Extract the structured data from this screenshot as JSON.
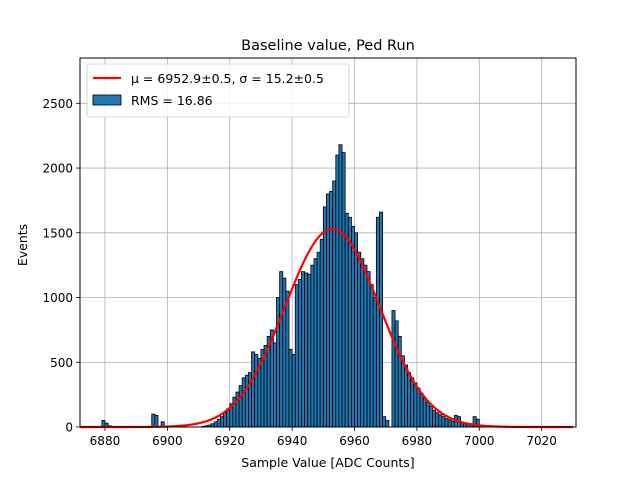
{
  "chart_data": {
    "type": "bar",
    "title": "Baseline value, Ped Run",
    "xlabel": "Sample Value [ADC Counts]",
    "ylabel": "Events",
    "xlim": [
      6872,
      7031
    ],
    "ylim": [
      0,
      2850
    ],
    "xticks": [
      6880,
      6900,
      6920,
      6940,
      6960,
      6980,
      7000,
      7020
    ],
    "yticks": [
      0,
      500,
      1000,
      1500,
      2000,
      2500
    ],
    "grid": true,
    "legend_position": "top-left",
    "legend": [
      {
        "type": "line",
        "label": "μ = 6952.9±0.5, σ = 15.2±0.5",
        "color": "#ff0000"
      },
      {
        "type": "patch",
        "label": "RMS = 16.86",
        "color": "#1f77b4"
      }
    ],
    "histogram": {
      "color": "#1f77b4",
      "edgecolor": "#000000",
      "bin_width": 1,
      "bins": [
        [
          6879,
          50
        ],
        [
          6880,
          30
        ],
        [
          6881,
          10
        ],
        [
          6882,
          5
        ],
        [
          6895,
          100
        ],
        [
          6896,
          90
        ],
        [
          6898,
          40
        ],
        [
          6911,
          5
        ],
        [
          6912,
          10
        ],
        [
          6913,
          15
        ],
        [
          6914,
          25
        ],
        [
          6915,
          40
        ],
        [
          6916,
          60
        ],
        [
          6917,
          80
        ],
        [
          6918,
          110
        ],
        [
          6919,
          140
        ],
        [
          6920,
          180
        ],
        [
          6921,
          230
        ],
        [
          6922,
          270
        ],
        [
          6923,
          320
        ],
        [
          6924,
          380
        ],
        [
          6925,
          400
        ],
        [
          6926,
          420
        ],
        [
          6927,
          580
        ],
        [
          6928,
          560
        ],
        [
          6929,
          530
        ],
        [
          6930,
          600
        ],
        [
          6931,
          630
        ],
        [
          6932,
          700
        ],
        [
          6933,
          750
        ],
        [
          6934,
          650
        ],
        [
          6935,
          1000
        ],
        [
          6936,
          1200
        ],
        [
          6937,
          1150
        ],
        [
          6938,
          1050
        ],
        [
          6939,
          600
        ],
        [
          6940,
          560
        ],
        [
          6941,
          1100
        ],
        [
          6942,
          1140
        ],
        [
          6943,
          1200
        ],
        [
          6944,
          1190
        ],
        [
          6945,
          1180
        ],
        [
          6946,
          1250
        ],
        [
          6947,
          1300
        ],
        [
          6948,
          1350
        ],
        [
          6949,
          1450
        ],
        [
          6950,
          1700
        ],
        [
          6951,
          1800
        ],
        [
          6952,
          1820
        ],
        [
          6953,
          1900
        ],
        [
          6954,
          2100
        ],
        [
          6955,
          2180
        ],
        [
          6956,
          2120
        ],
        [
          6957,
          1650
        ],
        [
          6958,
          1620
        ],
        [
          6959,
          1550
        ],
        [
          6960,
          1500
        ],
        [
          6961,
          1350
        ],
        [
          6962,
          1300
        ],
        [
          6963,
          1250
        ],
        [
          6964,
          1200
        ],
        [
          6965,
          1100
        ],
        [
          6966,
          1000
        ],
        [
          6967,
          1620
        ],
        [
          6968,
          1660
        ],
        [
          6969,
          80
        ],
        [
          6970,
          50
        ],
        [
          6972,
          900
        ],
        [
          6973,
          820
        ],
        [
          6974,
          700
        ],
        [
          6975,
          550
        ],
        [
          6976,
          480
        ],
        [
          6977,
          420
        ],
        [
          6978,
          380
        ],
        [
          6979,
          340
        ],
        [
          6980,
          300
        ],
        [
          6981,
          260
        ],
        [
          6982,
          220
        ],
        [
          6983,
          190
        ],
        [
          6984,
          160
        ],
        [
          6985,
          130
        ],
        [
          6986,
          110
        ],
        [
          6987,
          95
        ],
        [
          6988,
          80
        ],
        [
          6989,
          65
        ],
        [
          6990,
          55
        ],
        [
          6991,
          45
        ],
        [
          6992,
          90
        ],
        [
          6993,
          80
        ],
        [
          6994,
          35
        ],
        [
          6995,
          30
        ],
        [
          6996,
          25
        ],
        [
          6997,
          20
        ],
        [
          6998,
          80
        ],
        [
          6999,
          60
        ],
        [
          7000,
          15
        ],
        [
          7001,
          10
        ],
        [
          7002,
          8
        ],
        [
          7003,
          5
        ]
      ]
    },
    "gaussian_fit": {
      "mu": 6952.9,
      "sigma": 15.2,
      "amplitude": 1530,
      "x_range": [
        6872,
        7030
      ],
      "color": "#ff0000"
    }
  }
}
